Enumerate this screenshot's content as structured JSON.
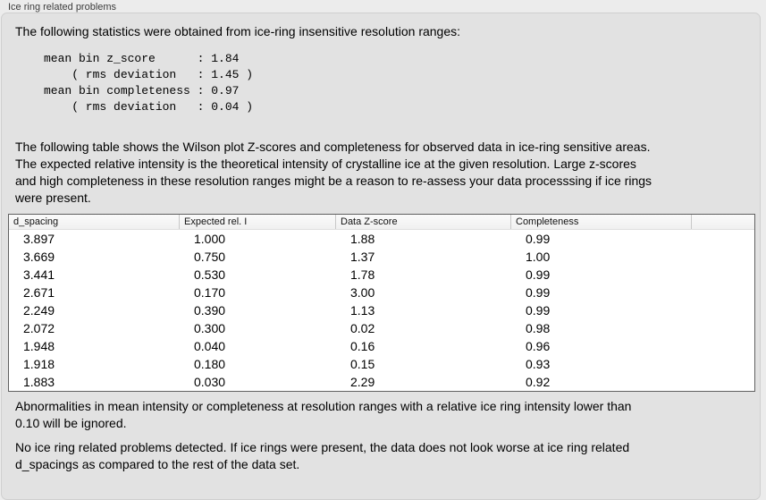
{
  "window": {
    "group_title": "Ice ring related problems"
  },
  "colors": {
    "outer_bg": "#ececec",
    "panel_bg": "#e2e2e2",
    "panel_border": "#cfcfcf",
    "table_border": "#606060",
    "table_header_bg": "#f5f5f5",
    "table_header_divider": "#c8c8c8",
    "table_row_bg": "#ffffff",
    "text": "#000000",
    "group_title_text": "#3c3c3c"
  },
  "intro": {
    "text": "The following statistics were obtained from ice-ring insensitive resolution ranges:"
  },
  "stats_block": {
    "lines": [
      "mean bin z_score      : 1.84",
      "    ( rms deviation   : 1.45 )",
      "mean bin completeness : 0.97",
      "    ( rms deviation   : 0.04 )"
    ]
  },
  "wilson_paragraph": {
    "lines": [
      "The following table shows the Wilson plot Z-scores and completeness for observed data in ice-ring sensitive areas.",
      "The expected relative intensity is the theoretical intensity of crystalline ice at the given resolution. Large z-scores",
      "and high completeness in these resolution ranges might be a reason to re-assess your data processsing if ice rings",
      "were present."
    ]
  },
  "table": {
    "columns": [
      "d_spacing",
      "Expected rel. I",
      "Data Z-score",
      "Completeness"
    ],
    "rows": [
      [
        "3.897",
        "1.000",
        "1.88",
        "0.99"
      ],
      [
        "3.669",
        "0.750",
        "1.37",
        "1.00"
      ],
      [
        "3.441",
        "0.530",
        "1.78",
        "0.99"
      ],
      [
        "2.671",
        "0.170",
        "3.00",
        "0.99"
      ],
      [
        "2.249",
        "0.390",
        "1.13",
        "0.99"
      ],
      [
        "2.072",
        "0.300",
        "0.02",
        "0.98"
      ],
      [
        "1.948",
        "0.040",
        "0.16",
        "0.96"
      ],
      [
        "1.918",
        "0.180",
        "0.15",
        "0.93"
      ],
      [
        "1.883",
        "0.030",
        "2.29",
        "0.92"
      ]
    ]
  },
  "footer": {
    "abnormalities_lines": [
      "Abnormalities in mean intensity or completeness at resolution ranges with a relative ice ring intensity lower than",
      "0.10 will be ignored."
    ],
    "conclusion_lines": [
      "No ice ring related problems detected. If ice rings were present, the data does not look worse at ice ring related",
      "d_spacings as compared to the rest of the data set."
    ]
  }
}
